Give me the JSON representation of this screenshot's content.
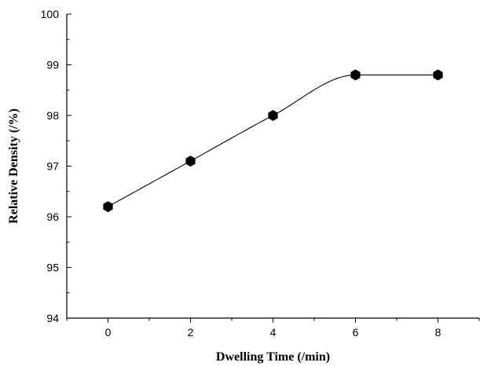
{
  "chart_data": {
    "type": "scatter",
    "title": "",
    "xlabel": "Dwelling Time (/min)",
    "ylabel": "Relative Density (/%)",
    "xlim": [
      -1,
      9
    ],
    "ylim": [
      94,
      100
    ],
    "xticks": [
      0,
      2,
      4,
      6,
      8
    ],
    "yticks": [
      94,
      95,
      96,
      97,
      98,
      99,
      100
    ],
    "grid": false,
    "legend": "none",
    "marker": "filled-hexagon",
    "fit_line": "smooth curve through points",
    "colors": {
      "marker": "#000000",
      "line": "#000000",
      "axis": "#000000"
    },
    "series": [
      {
        "x": [
          0,
          2,
          4,
          6,
          8
        ],
        "y": [
          96.2,
          97.1,
          98.0,
          98.8,
          98.8
        ]
      }
    ]
  }
}
